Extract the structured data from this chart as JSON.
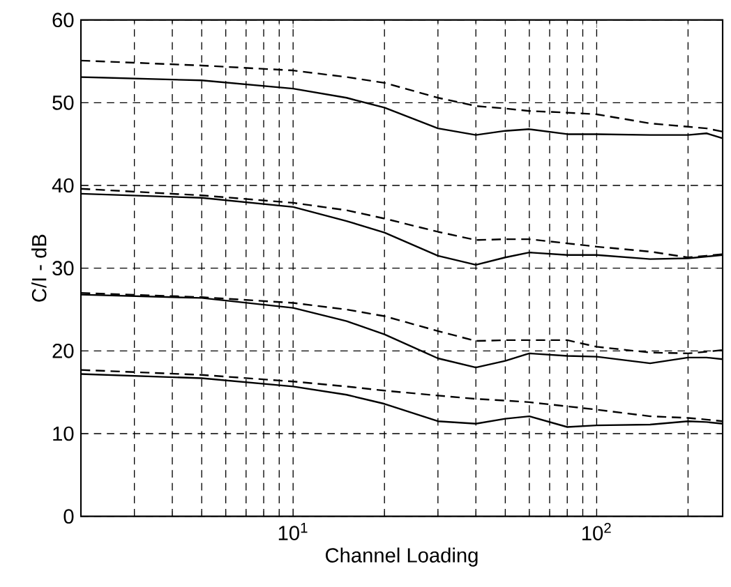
{
  "chart_data": {
    "type": "line",
    "xlabel": "Channel Loading",
    "ylabel": "C/I - dB",
    "log": "x",
    "grid": true,
    "marker": "none",
    "xlim": [
      2,
      260
    ],
    "ylim": [
      0,
      60
    ],
    "xticks": [
      {
        "value": 10,
        "label": "10$^{1}$"
      },
      {
        "value": 100,
        "label": "10$^{2}$"
      }
    ],
    "yticks": [
      0,
      10,
      20,
      30,
      40,
      50,
      60
    ],
    "x": [
      2,
      5,
      10,
      15,
      20,
      30,
      40,
      50,
      60,
      80,
      100,
      150,
      200,
      230,
      260
    ],
    "series": [
      {
        "color": "#000000",
        "line_style": "solid",
        "values": [
          53.1,
          52.7,
          51.7,
          50.6,
          49.4,
          46.9,
          46.1,
          46.6,
          46.8,
          46.2,
          46.2,
          46.1,
          46.1,
          46.3,
          45.7
        ]
      },
      {
        "color": "#000000",
        "line_style": "dashed",
        "values": [
          55.1,
          54.5,
          53.9,
          53.1,
          52.4,
          50.6,
          49.6,
          49.3,
          49.0,
          48.8,
          48.6,
          47.5,
          47.1,
          46.9,
          46.5
        ]
      },
      {
        "color": "#000000",
        "line_style": "solid",
        "values": [
          39.0,
          38.5,
          37.4,
          35.7,
          34.3,
          31.5,
          30.4,
          31.3,
          31.9,
          31.6,
          31.6,
          31.1,
          31.2,
          31.4,
          31.6
        ]
      },
      {
        "color": "#000000",
        "line_style": "dashed",
        "values": [
          39.6,
          38.8,
          37.9,
          37.0,
          36.0,
          34.4,
          33.4,
          33.5,
          33.5,
          33.0,
          32.6,
          32.0,
          31.3,
          31.5,
          31.7
        ]
      },
      {
        "color": "#000000",
        "line_style": "solid",
        "values": [
          26.8,
          26.4,
          25.2,
          23.6,
          22.0,
          19.1,
          18.0,
          18.8,
          19.7,
          19.4,
          19.3,
          18.5,
          19.2,
          19.2,
          19.0
        ]
      },
      {
        "color": "#000000",
        "line_style": "dashed",
        "values": [
          27.0,
          26.5,
          25.8,
          25.0,
          24.2,
          22.4,
          21.2,
          21.3,
          21.3,
          21.3,
          20.5,
          19.8,
          19.7,
          19.9,
          20.1
        ]
      },
      {
        "color": "#000000",
        "line_style": "solid",
        "values": [
          17.2,
          16.7,
          15.7,
          14.7,
          13.6,
          11.5,
          11.2,
          11.8,
          12.1,
          10.8,
          11.0,
          11.1,
          11.5,
          11.4,
          11.2
        ]
      },
      {
        "color": "#000000",
        "line_style": "dashed",
        "values": [
          17.7,
          17.1,
          16.3,
          15.7,
          15.2,
          14.6,
          14.2,
          14.0,
          13.8,
          13.3,
          12.9,
          12.1,
          11.9,
          11.7,
          11.5
        ]
      }
    ]
  }
}
